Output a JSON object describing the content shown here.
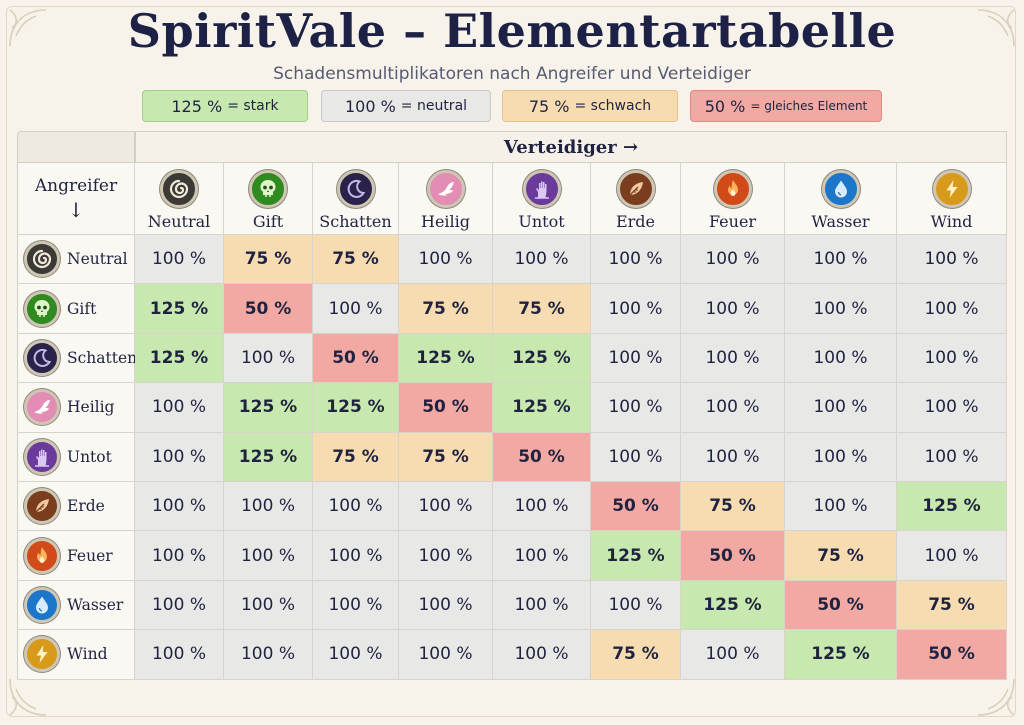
{
  "title": "SpiritVale – Elementartabelle",
  "subtitle": "Schadensmultiplikatoren nach Angreifer und Verteidiger",
  "legend": [
    {
      "pct": "125 %",
      "label": "= stark",
      "kind": "strong",
      "color": "#c7e8ae"
    },
    {
      "pct": "100 %",
      "label": "= neutral",
      "kind": "neutral",
      "color": "#e8e8e7"
    },
    {
      "pct": "75 %",
      "label": "= schwach",
      "kind": "weak",
      "color": "#f8dcb1"
    },
    {
      "pct": "50 %",
      "label": "= gleiches Element",
      "kind": "same",
      "color": "#f2a9a3"
    }
  ],
  "defender_header": "Verteidiger →",
  "attacker_header": "Angreifer",
  "attacker_arrow": "↓",
  "elements": [
    {
      "name": "Neutral",
      "icon": "swirl-icon",
      "color": "#3b3a36"
    },
    {
      "name": "Gift",
      "icon": "skull-icon",
      "color": "#2f8a1f"
    },
    {
      "name": "Schatten",
      "icon": "crescent-moon-icon",
      "color": "#2a2248"
    },
    {
      "name": "Heilig",
      "icon": "wing-icon",
      "color": "#e38db4"
    },
    {
      "name": "Untot",
      "icon": "zombie-hand-icon",
      "color": "#6b3b9c"
    },
    {
      "name": "Erde",
      "icon": "leaf-icon",
      "color": "#7a3d1e"
    },
    {
      "name": "Feuer",
      "icon": "flame-icon",
      "color": "#d04a1a"
    },
    {
      "name": "Wasser",
      "icon": "water-drop-icon",
      "color": "#1c76c9"
    },
    {
      "name": "Wind",
      "icon": "lightning-icon",
      "color": "#d89a1a"
    }
  ],
  "matrix": [
    [
      "100 %",
      "75 %",
      "75 %",
      "100 %",
      "100 %",
      "100 %",
      "100 %",
      "100 %",
      "100 %"
    ],
    [
      "125 %",
      "50 %",
      "100 %",
      "75 %",
      "75 %",
      "100 %",
      "100 %",
      "100 %",
      "100 %"
    ],
    [
      "125 %",
      "100 %",
      "50 %",
      "125 %",
      "125 %",
      "100 %",
      "100 %",
      "100 %",
      "100 %"
    ],
    [
      "100 %",
      "125 %",
      "125 %",
      "50 %",
      "125 %",
      "100 %",
      "100 %",
      "100 %",
      "100 %"
    ],
    [
      "100 %",
      "125 %",
      "75 %",
      "75 %",
      "50 %",
      "100 %",
      "100 %",
      "100 %",
      "100 %"
    ],
    [
      "100 %",
      "100 %",
      "100 %",
      "100 %",
      "100 %",
      "50 %",
      "75 %",
      "100 %",
      "125 %"
    ],
    [
      "100 %",
      "100 %",
      "100 %",
      "100 %",
      "100 %",
      "125 %",
      "50 %",
      "75 %",
      "100 %"
    ],
    [
      "100 %",
      "100 %",
      "100 %",
      "100 %",
      "100 %",
      "100 %",
      "125 %",
      "50 %",
      "75 %"
    ],
    [
      "100 %",
      "100 %",
      "100 %",
      "100 %",
      "100 %",
      "75 %",
      "100 %",
      "125 %",
      "50 %"
    ]
  ]
}
